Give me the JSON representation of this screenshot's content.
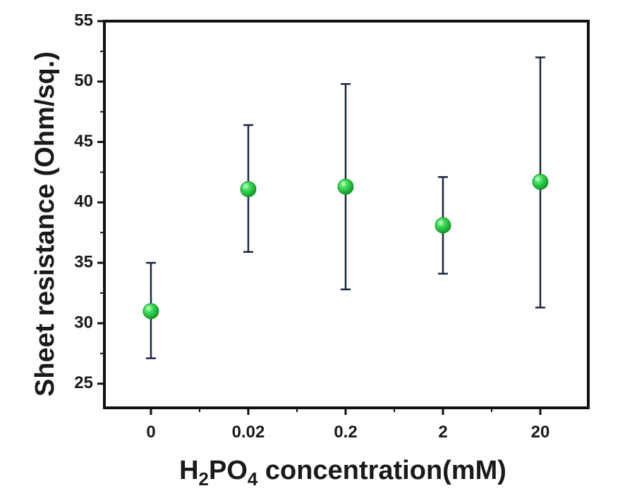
{
  "chart_data": {
    "type": "scatter",
    "categories": [
      "0",
      "0.02",
      "0.2",
      "2",
      "20"
    ],
    "values": [
      31.0,
      41.1,
      41.3,
      38.1,
      41.7
    ],
    "error_upper": [
      35.0,
      46.4,
      49.8,
      42.1,
      52.0
    ],
    "error_lower": [
      27.1,
      35.9,
      32.8,
      34.1,
      31.3
    ],
    "xlabel": {
      "prefix": "H",
      "sub1": "2",
      "mid": "PO",
      "sub2": "4",
      "suffix": " concentration(mM)"
    },
    "ylabel": "Sheet resistance (Ohm/sq.)",
    "ylim": [
      23,
      55
    ],
    "yticks": [
      25,
      30,
      35,
      40,
      45,
      50,
      55
    ],
    "grid": false,
    "marker_color": "#22d33c",
    "errorbar_color": "#1c2740"
  }
}
